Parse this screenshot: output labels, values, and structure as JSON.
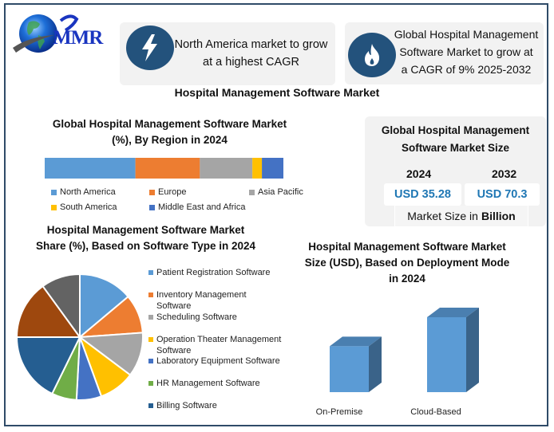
{
  "brand": {
    "logo_text": "MMR"
  },
  "highlights": [
    {
      "icon": "lightning-bolt-icon",
      "text_lines": [
        "North America market to grow",
        "at a highest CAGR"
      ]
    },
    {
      "icon": "flame-icon",
      "text_lines": [
        "Global Hospital Management",
        "Software Market to grow at",
        "a CAGR of 9% 2025-2032"
      ]
    }
  ],
  "main_title": "Hospital Management Software Market",
  "market_size": {
    "title_lines": [
      "Global Hospital Management",
      "Software Market Size"
    ],
    "years": [
      {
        "year": "2024",
        "value": "USD 35.28"
      },
      {
        "year": "2032",
        "value": "USD 70.3"
      }
    ],
    "unit_prefix": "Market Size in",
    "unit_bold": "Billion"
  },
  "colors": {
    "border": "#2f4b68",
    "icon_bg": "#23527c",
    "value_text": "#1f77b4"
  },
  "chart_data": [
    {
      "type": "bar",
      "orientation": "horizontal-stacked-100",
      "title_lines": [
        "Global Hospital Management Software Market",
        "(%), By Region in 2024"
      ],
      "categories": [
        "2024"
      ],
      "series": [
        {
          "name": "North America",
          "values": [
            38
          ],
          "color": "#5b9bd5"
        },
        {
          "name": "Europe",
          "values": [
            27
          ],
          "color": "#ed7d31"
        },
        {
          "name": "Asia Pacific",
          "values": [
            22
          ],
          "color": "#a5a5a5"
        },
        {
          "name": "South America",
          "values": [
            4
          ],
          "color": "#ffc000"
        },
        {
          "name": "Middle East and Africa",
          "values": [
            9
          ],
          "color": "#4472c4"
        }
      ],
      "xlim": [
        0,
        100
      ],
      "grid": false,
      "legend": "bottom"
    },
    {
      "type": "pie",
      "title_lines": [
        "Hospital Management Software Market",
        "Share (%), Based on Software Type in 2024"
      ],
      "slices": [
        {
          "label": "Patient Registration Software",
          "value": 13.9,
          "color": "#5b9bd5",
          "legend": true
        },
        {
          "label": "Inventory Management Software",
          "value": 10.0,
          "color": "#ed7d31",
          "legend": true
        },
        {
          "label": "Scheduling Software",
          "value": 11.4,
          "color": "#a5a5a5",
          "legend": true
        },
        {
          "label": "Operation Theater Management Software",
          "value": 9.2,
          "color": "#ffc000",
          "legend": true
        },
        {
          "label": "Laboratory Equipment Software",
          "value": 6.4,
          "color": "#4472c4",
          "legend": true
        },
        {
          "label": "HR Management Software",
          "value": 6.4,
          "color": "#70ad47",
          "legend": true
        },
        {
          "label": "Billing Software",
          "value": 17.8,
          "color": "#255e91",
          "legend": true
        },
        {
          "label": "",
          "value": 15.0,
          "color": "#9e480e",
          "legend": false
        },
        {
          "label": "",
          "value": 10.0,
          "color": "#636363",
          "legend": false
        }
      ],
      "legend_lines": [
        [
          "Patient Registration Software"
        ],
        [
          "Inventory Management",
          "Software"
        ],
        [
          "Scheduling Software"
        ],
        [
          "Operation Theater Management",
          "Software"
        ],
        [
          "Laboratory Equipment Software"
        ],
        [
          "HR Management Software"
        ],
        [
          "Billing Software"
        ]
      ],
      "legend": "right"
    },
    {
      "type": "bar",
      "style": "3d-column",
      "title_lines": [
        "Hospital Management Software Market",
        "Size (USD), Based on Deployment Mode",
        "in 2024"
      ],
      "categories": [
        "On-Premise",
        "Cloud-Based"
      ],
      "values": [
        38,
        62
      ],
      "value_unit": "relative share % (estimated, no axis shown)",
      "ylim": [
        0,
        62
      ],
      "xlabel": "",
      "ylabel": "",
      "grid": false,
      "color": "#5b9bd5"
    }
  ]
}
